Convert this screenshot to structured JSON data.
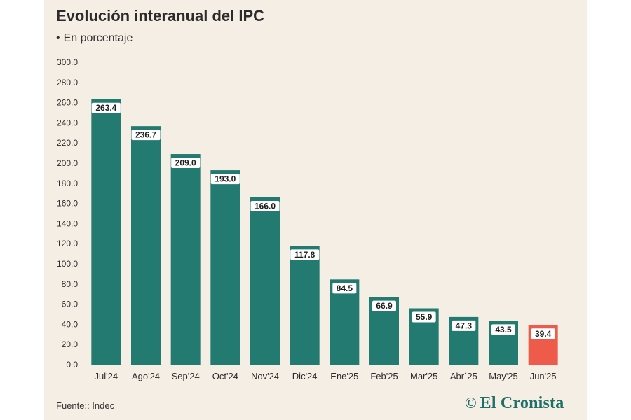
{
  "title": "Evolución interanual del IPC",
  "subtitle": "En porcentaje",
  "source": "Fuente:: Indec",
  "brand": "El Cronista",
  "colors": {
    "background": "#f5eee4",
    "bar": "#237a70",
    "highlight": "#ef5b4a",
    "text": "#2b2b2b"
  },
  "chart_data": {
    "type": "bar",
    "title": "Evolución interanual del IPC",
    "subtitle": "En porcentaje",
    "xlabel": "",
    "ylabel": "",
    "ylim": [
      0,
      300
    ],
    "yticks": [
      "0.0",
      "20.0",
      "40.0",
      "60.0",
      "80.0",
      "100.0",
      "120.0",
      "140.0",
      "160.0",
      "180.0",
      "200.0",
      "220.0",
      "240.0",
      "260.0",
      "280.0",
      "300.0"
    ],
    "categories": [
      "Jul'24",
      "Ago'24",
      "Sep'24",
      "Oct'24",
      "Nov'24",
      "Dic'24",
      "Ene'25",
      "Feb'25",
      "Mar'25",
      "Abr´25",
      "May'25",
      "Jun'25"
    ],
    "values": [
      263.4,
      236.7,
      209.0,
      193.0,
      166.0,
      117.8,
      84.5,
      66.9,
      55.9,
      47.3,
      43.5,
      39.4
    ],
    "value_labels": [
      "263.4",
      "236.7",
      "209.0",
      "193.0",
      "166.0",
      "117.8",
      "84.5",
      "66.9",
      "55.9",
      "47.3",
      "43.5",
      "39.4"
    ],
    "highlight_index": 11,
    "grid": false,
    "legend": "none"
  }
}
